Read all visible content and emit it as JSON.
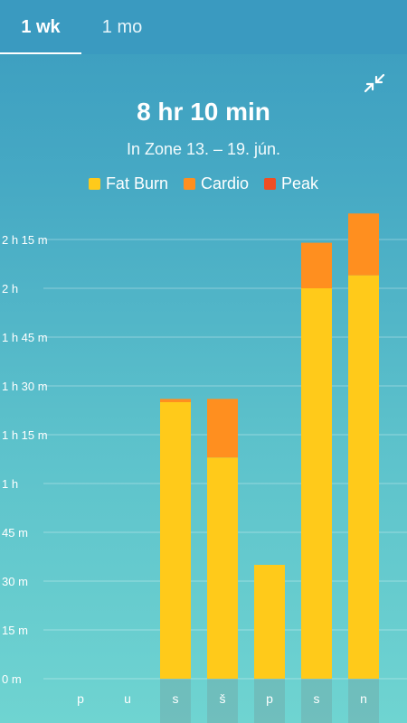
{
  "tabs": [
    {
      "label": "1 wk",
      "active": true
    },
    {
      "label": "1 mo",
      "active": false
    }
  ],
  "icons": {
    "collapse": "collapse-arrows-icon"
  },
  "summary": {
    "total": "8 hr 10 min",
    "subtitle": "In Zone 13. – 19. jún."
  },
  "legend": [
    {
      "label": "Fat Burn",
      "color": "#ffca1a"
    },
    {
      "label": "Cardio",
      "color": "#ff8f1f"
    },
    {
      "label": "Peak",
      "color": "#f04e23"
    }
  ],
  "chart_data": {
    "type": "bar",
    "stacked": true,
    "categories": [
      "p",
      "u",
      "s",
      "š",
      "p",
      "s",
      "n"
    ],
    "series": [
      {
        "name": "Fat Burn",
        "color": "#ffca1a",
        "values": [
          0,
          0,
          85,
          68,
          35,
          120,
          124
        ]
      },
      {
        "name": "Cardio",
        "color": "#ff8f1f",
        "values": [
          0,
          0,
          1,
          18,
          0,
          14,
          19
        ]
      },
      {
        "name": "Peak",
        "color": "#f04e23",
        "values": [
          0,
          0,
          0,
          0,
          0,
          0,
          0
        ]
      }
    ],
    "yunit": "minutes",
    "ylim": [
      0,
      143
    ],
    "yticks": [
      0,
      15,
      30,
      45,
      60,
      75,
      90,
      105,
      120,
      135
    ],
    "ytick_labels": [
      "0 m",
      "15 m",
      "30 m",
      "45 m",
      "1 h",
      "1 h 15 m",
      "1 h 30 m",
      "1 h 45 m",
      "2 h",
      "2 h 15 m"
    ],
    "grid": true
  }
}
